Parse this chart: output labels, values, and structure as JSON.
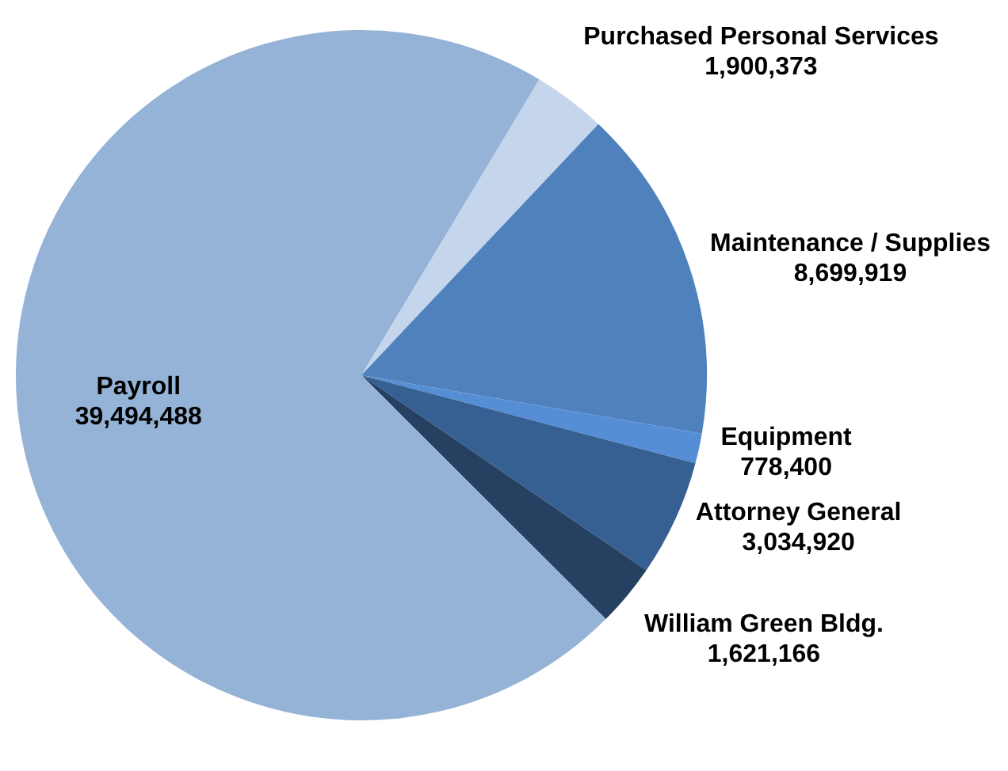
{
  "chart_data": {
    "type": "pie",
    "categories": [
      "Purchased Personal Services",
      "Maintenance / Supplies",
      "Equipment",
      "Attorney General",
      "William Green Bldg.",
      "Payroll"
    ],
    "values": [
      1900373,
      8699919,
      778400,
      3034920,
      1621166,
      39494488
    ],
    "value_labels": [
      "1,900,373",
      "8,699,919",
      "778,400",
      "3,034,920",
      "1,621,166",
      "39,494,488"
    ],
    "colors": [
      "#c5d6ec",
      "#4f81bd",
      "#558ed5",
      "#376092",
      "#254061",
      "#95b3d7"
    ]
  }
}
